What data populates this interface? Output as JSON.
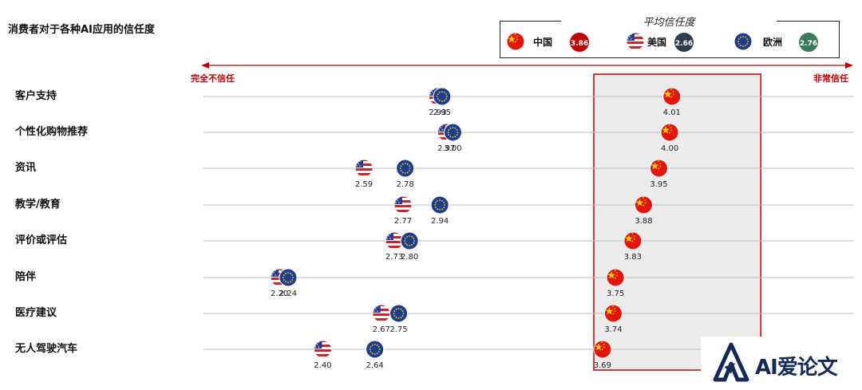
{
  "chart_data": {
    "type": "scatter",
    "title": "消费者对于各种AI应用的信任度",
    "legend_title": "平均信任度",
    "axis_left_label": "完全不信任",
    "axis_right_label": "非常信任",
    "xlim": [
      1.85,
      4.85
    ],
    "categories": [
      "客户支持",
      "个性化购物推荐",
      "资讯",
      "教学/教育",
      "评价或评估",
      "陪伴",
      "医疗建议",
      "无人驾驶汽车"
    ],
    "series": [
      {
        "name": "中国",
        "flag": "china",
        "average": "3.86",
        "average_color": "#c00000",
        "values": [
          4.01,
          4.0,
          3.95,
          3.88,
          3.83,
          3.75,
          3.74,
          3.69
        ]
      },
      {
        "name": "美国",
        "flag": "usa",
        "average": "2.66",
        "average_color": "#2e3d4f",
        "values": [
          2.93,
          2.97,
          2.59,
          2.77,
          2.73,
          2.2,
          2.67,
          2.4
        ]
      },
      {
        "name": "欧洲",
        "flag": "eu",
        "average": "2.76",
        "average_color": "#3c7a5a",
        "values": [
          2.95,
          3.0,
          2.78,
          2.94,
          2.8,
          2.24,
          2.75,
          2.64
        ]
      }
    ],
    "highlight_range": [
      3.65,
      4.42
    ],
    "grid": "horizontal-row-lines",
    "legend_position": "top-right"
  },
  "watermark": {
    "text": "AI爱论文",
    "logo": "ai-logo-icon"
  },
  "colors": {
    "accent_red": "#c00000",
    "grid": "#bdbdbd",
    "highlight_fill": "#ececec"
  }
}
